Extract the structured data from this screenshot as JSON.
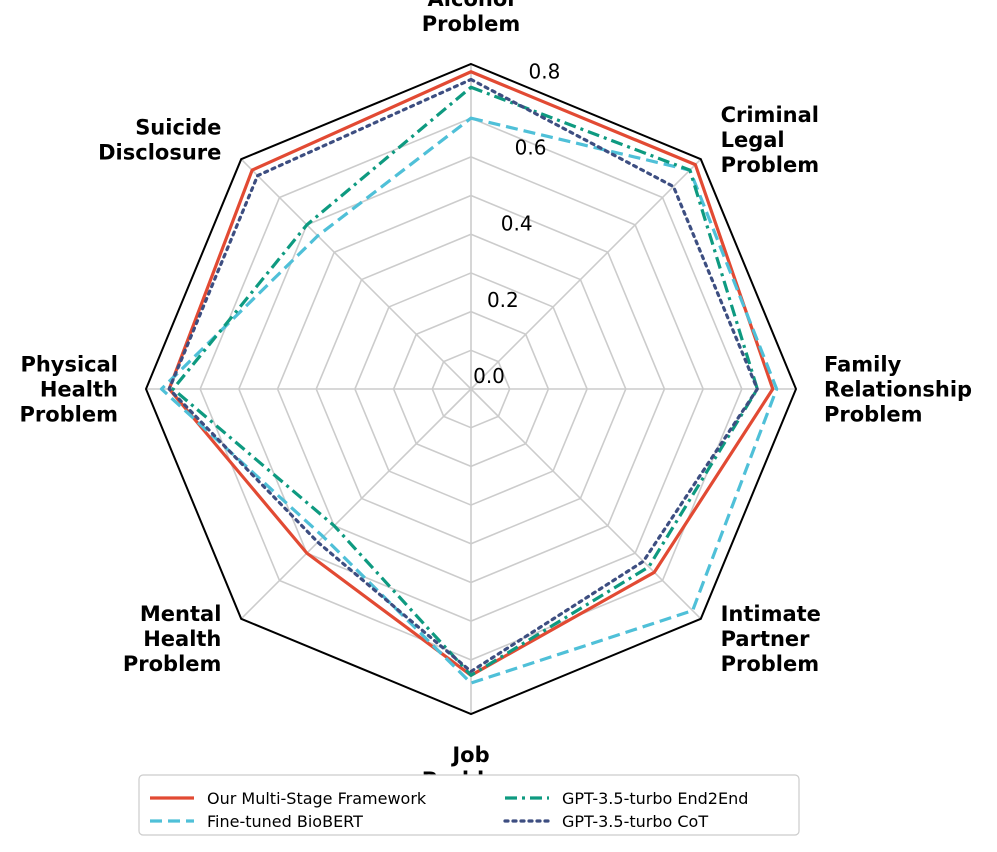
{
  "chart_data": {
    "type": "radar",
    "categories": [
      [
        "Alcohol",
        "Problem"
      ],
      [
        "Criminal",
        "Legal",
        "Problem"
      ],
      [
        "Family",
        "Relationship",
        "Problem"
      ],
      [
        "Intimate",
        "Partner",
        "Problem"
      ],
      [
        "Job",
        "Problem"
      ],
      [
        "Mental",
        "Health",
        "Problem"
      ],
      [
        "Physical",
        "Health",
        "Problem"
      ],
      [
        "Suicide",
        "Disclosure"
      ]
    ],
    "rlim": [
      0,
      0.84
    ],
    "ticks": [
      0.0,
      0.2,
      0.4,
      0.6,
      0.8
    ],
    "tick_labels": [
      "0.0",
      "0.2",
      "0.4",
      "0.6",
      "0.8"
    ],
    "grid": true,
    "legend_position": "bottom",
    "series": [
      {
        "name": "Our Multi-Stage Framework",
        "color": "#e24a33",
        "dash": "solid",
        "values": [
          0.82,
          0.82,
          0.78,
          0.67,
          0.74,
          0.6,
          0.78,
          0.8
        ]
      },
      {
        "name": "Fine-tuned BioBERT",
        "color": "#4fc0d8",
        "dash": "dashed",
        "values": [
          0.7,
          0.8,
          0.79,
          0.81,
          0.76,
          0.54,
          0.8,
          0.56
        ]
      },
      {
        "name": "GPT-3.5-turbo End2End",
        "color": "#0e9a80",
        "dash": "dashdot",
        "values": [
          0.78,
          0.8,
          0.74,
          0.65,
          0.74,
          0.5,
          0.77,
          0.6
        ]
      },
      {
        "name": "GPT-3.5-turbo CoT",
        "color": "#3d4e81",
        "dash": "dotted",
        "values": [
          0.8,
          0.74,
          0.74,
          0.63,
          0.73,
          0.56,
          0.78,
          0.78
        ]
      }
    ]
  }
}
